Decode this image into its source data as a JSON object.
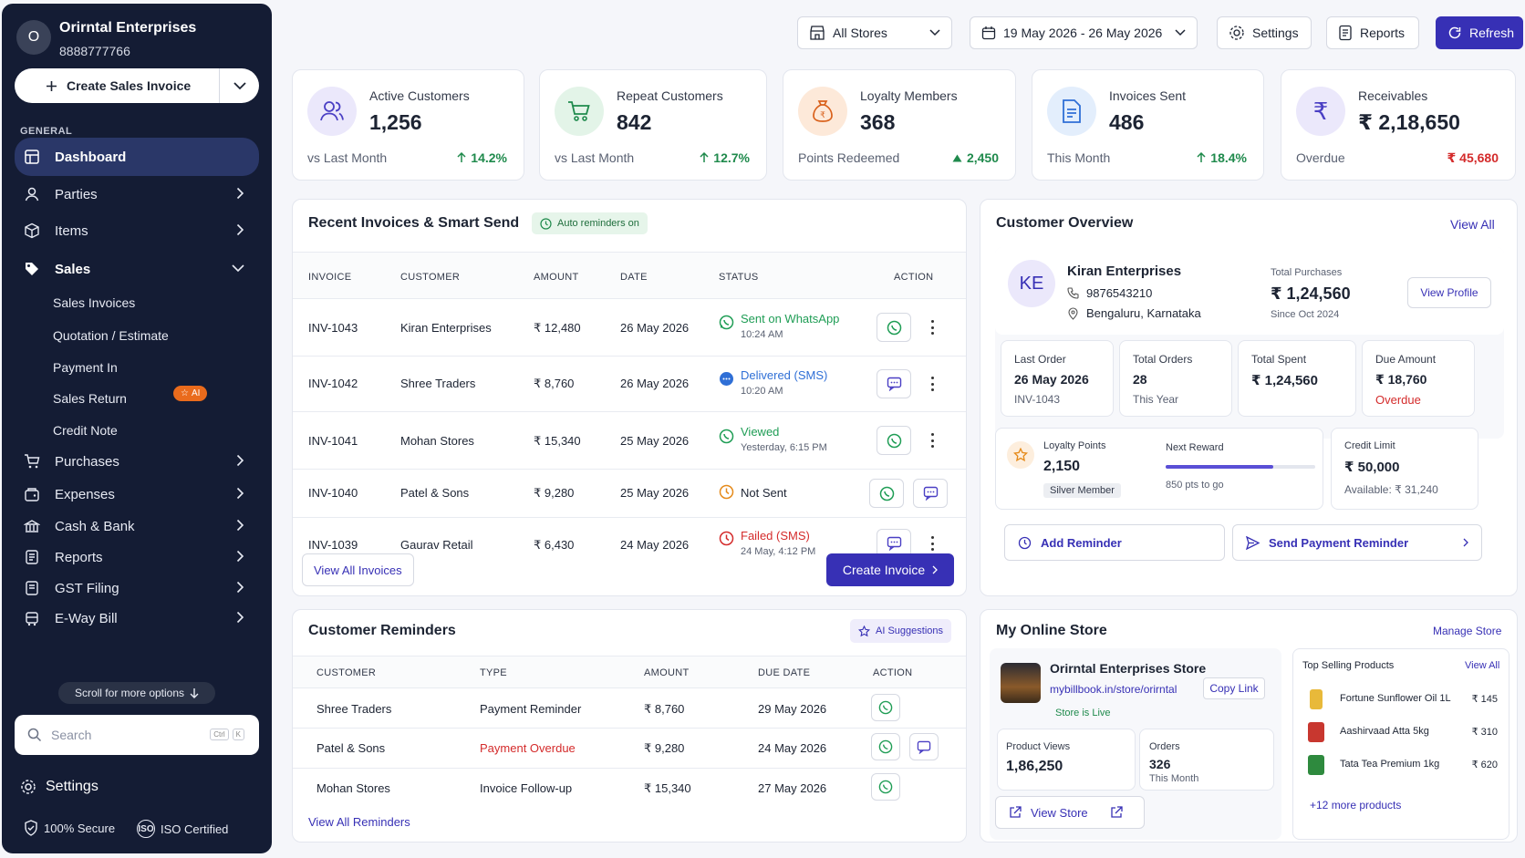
{
  "sidebar": {
    "avatar_initial": "O",
    "business_name": "Orirntal Enterprises",
    "phone": "8888777766",
    "create_label": "Create Sales Invoice",
    "section_label": "GENERAL",
    "nav": {
      "dashboard": "Dashboard",
      "parties": "Parties",
      "items": "Items",
      "sales": "Sales",
      "purchases": "Purchases",
      "expenses": "Expenses",
      "cash_bank": "Cash & Bank",
      "reports": "Reports",
      "gst": "GST Filing",
      "eway": "E-Way Bill"
    },
    "sales_sub": {
      "invoices": "Sales Invoices",
      "quotation": "Quotation / Estimate",
      "payment_in": "Payment In",
      "sales_return": "Sales Return",
      "credit_note": "Credit Note"
    },
    "ai_badge": "AI",
    "scroll_hint": "Scroll for more options",
    "search_placeholder": "Search",
    "kbd_ctrl": "Ctrl",
    "kbd_k": "K",
    "settings": "Settings",
    "secure": "100% Secure",
    "iso": "ISO Certified"
  },
  "header": {
    "store_filter": "All Stores",
    "date_range": "19 May 2026 - 26 May 2026",
    "settings": "Settings",
    "reports": "Reports",
    "refresh": "Refresh"
  },
  "stats": {
    "active": {
      "label": "Active Customers",
      "value": "1,256",
      "sub": "vs Last Month",
      "change": "14.2%"
    },
    "repeat": {
      "label": "Repeat Customers",
      "value": "842",
      "sub": "vs Last Month",
      "change": "12.7%"
    },
    "loyalty": {
      "label": "Loyalty Members",
      "value": "368",
      "sub": "Points Redeemed",
      "change": "2,450"
    },
    "invoices": {
      "label": "Invoices Sent",
      "value": "486",
      "sub": "This Month",
      "change": "18.4%"
    },
    "receivables": {
      "label": "Receivables",
      "value": "₹ 2,18,650",
      "sub": "Overdue",
      "change": "₹ 45,680"
    }
  },
  "recent": {
    "title": "Recent Invoices & Smart Send",
    "auto_badge": "Auto reminders on",
    "headers": {
      "invoice": "INVOICE",
      "customer": "CUSTOMER",
      "amount": "AMOUNT",
      "date": "DATE",
      "status": "STATUS",
      "action": "ACTION"
    },
    "rows": [
      {
        "invoice": "INV-1043",
        "customer": "Kiran Enterprises",
        "amount": "₹ 12,480",
        "date": "26 May 2026",
        "status": "Sent on WhatsApp",
        "status_sub": "10:24 AM"
      },
      {
        "invoice": "INV-1042",
        "customer": "Shree Traders",
        "amount": "₹ 8,760",
        "date": "26 May 2026",
        "status": "Delivered (SMS)",
        "status_sub": "10:20 AM"
      },
      {
        "invoice": "INV-1041",
        "customer": "Mohan Stores",
        "amount": "₹ 15,340",
        "date": "25 May 2026",
        "status": "Viewed",
        "status_sub": "Yesterday, 6:15 PM"
      },
      {
        "invoice": "INV-1040",
        "customer": "Patel & Sons",
        "amount": "₹ 9,280",
        "date": "25 May 2026",
        "status": "Not Sent",
        "status_sub": ""
      },
      {
        "invoice": "INV-1039",
        "customer": "Gaurav Retail",
        "amount": "₹ 6,430",
        "date": "24 May 2026",
        "status": "Failed (SMS)",
        "status_sub": "24 May, 4:12 PM"
      }
    ],
    "view_all": "View All Invoices",
    "create": "Create Invoice"
  },
  "reminders": {
    "title": "Customer Reminders",
    "ai_label": "AI Suggestions",
    "headers": {
      "customer": "CUSTOMER",
      "type": "TYPE",
      "amount": "AMOUNT",
      "due": "DUE DATE",
      "action": "ACTION"
    },
    "rows": [
      {
        "customer": "Shree Traders",
        "type": "Payment Reminder",
        "amount": "₹ 8,760",
        "due": "29 May 2026"
      },
      {
        "customer": "Patel & Sons",
        "type": "Payment Overdue",
        "amount": "₹ 9,280",
        "due": "24 May 2026"
      },
      {
        "customer": "Mohan Stores",
        "type": "Invoice Follow-up",
        "amount": "₹ 15,340",
        "due": "27 May 2026"
      }
    ],
    "view_all": "View All Reminders"
  },
  "overview": {
    "title": "Customer Overview",
    "view_all": "View All",
    "initials": "KE",
    "name": "Kiran Enterprises",
    "phone": "9876543210",
    "location": "Bengaluru, Karnataka",
    "total_purchases_label": "Total Purchases",
    "total_purchases": "₹ 1,24,560",
    "since": "Since Oct 2024",
    "view_profile": "View Profile",
    "last_order_label": "Last Order",
    "last_order": "26 May 2026",
    "last_order_sub": "INV-1043",
    "total_orders_label": "Total Orders",
    "total_orders": "28",
    "total_orders_sub": "This Year",
    "total_spent_label": "Total Spent",
    "total_spent": "₹ 1,24,560",
    "due_label": "Due Amount",
    "due": "₹ 18,760",
    "due_sub": "Overdue",
    "loyalty_label": "Loyalty Points",
    "loyalty": "2,150",
    "tier": "Silver Member",
    "next_reward_label": "Next Reward",
    "next_reward_progress": 0.72,
    "pts_to_go": "850 pts to go",
    "credit_label": "Credit Limit",
    "credit": "₹ 50,000",
    "available": "Available: ₹ 31,240",
    "add_reminder": "Add Reminder",
    "send_reminder": "Send Payment Reminder"
  },
  "store": {
    "title": "My Online Store",
    "manage": "Manage Store",
    "name": "Orirntal Enterprises Store",
    "url": "mybillbook.in/store/orirntal",
    "copy": "Copy Link",
    "live": "Store is Live",
    "views_label": "Product Views",
    "views": "1,86,250",
    "orders_label": "Orders",
    "orders": "326",
    "orders_sub": "This Month",
    "view_store": "View Store",
    "top_title": "Top Selling Products",
    "top_view_all": "View All",
    "products": [
      {
        "name": "Fortune Sunflower Oil 1L",
        "price": "₹ 145"
      },
      {
        "name": "Aashirvaad Atta 5kg",
        "price": "₹ 310"
      },
      {
        "name": "Tata Tea Premium 1kg",
        "price": "₹ 620"
      }
    ],
    "more": "+12 more products"
  }
}
